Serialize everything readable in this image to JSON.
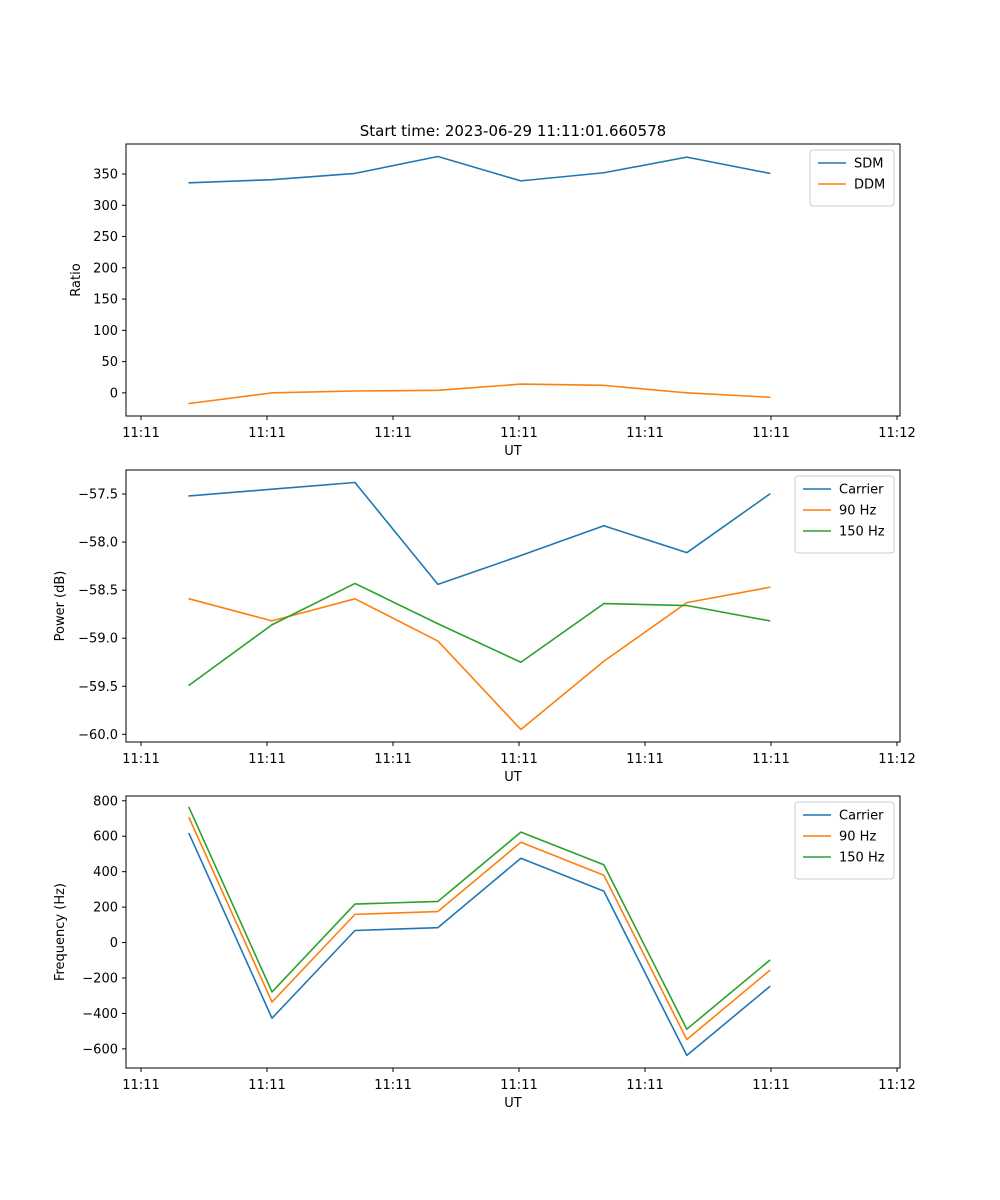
{
  "chart_data": [
    {
      "type": "line",
      "title": "Start time: 2023-06-29 11:11:01.660578",
      "xlabel": "UT",
      "ylabel": "Ratio",
      "x_tick_labels": [
        "11:11",
        "11:11",
        "11:11",
        "11:11",
        "11:11",
        "11:11",
        "11:12"
      ],
      "x_range_index": [
        -0.76,
        8.57
      ],
      "ylim": [
        -37,
        398
      ],
      "y_ticks": [
        0,
        50,
        100,
        150,
        200,
        250,
        300,
        350
      ],
      "legend_position": "upper right",
      "series": [
        {
          "name": "SDM",
          "color": "#1f77b4",
          "values": [
            336,
            341,
            351,
            378,
            339,
            352,
            377,
            351
          ]
        },
        {
          "name": "DDM",
          "color": "#ff7f0e",
          "values": [
            -17,
            0,
            3,
            4,
            14,
            12,
            0,
            -7
          ]
        }
      ]
    },
    {
      "type": "line",
      "title": "",
      "xlabel": "UT",
      "ylabel": "Power (dB)",
      "x_tick_labels": [
        "11:11",
        "11:11",
        "11:11",
        "11:11",
        "11:11",
        "11:11",
        "11:12"
      ],
      "x_range_index": [
        -0.76,
        8.57
      ],
      "ylim": [
        -60.08,
        -57.25
      ],
      "y_ticks": [
        -60.0,
        -59.5,
        -59.0,
        -58.5,
        -58.0,
        -57.5
      ],
      "legend_position": "upper right",
      "series": [
        {
          "name": "Carrier",
          "color": "#1f77b4",
          "values": [
            -57.52,
            -57.45,
            -57.38,
            -58.44,
            -58.14,
            -57.83,
            -58.11,
            -57.5
          ]
        },
        {
          "name": "90 Hz",
          "color": "#ff7f0e",
          "values": [
            -58.59,
            -58.82,
            -58.59,
            -59.03,
            -59.95,
            -59.24,
            -58.63,
            -58.47
          ]
        },
        {
          "name": "150 Hz",
          "color": "#2ca02c",
          "values": [
            -59.49,
            -58.86,
            -58.43,
            -58.85,
            -59.25,
            -58.64,
            -58.66,
            -58.82
          ]
        }
      ]
    },
    {
      "type": "line",
      "title": "",
      "xlabel": "UT",
      "ylabel": "Frequency (Hz)",
      "x_tick_labels": [
        "11:11",
        "11:11",
        "11:11",
        "11:11",
        "11:11",
        "11:11",
        "11:12"
      ],
      "x_range_index": [
        -0.76,
        8.57
      ],
      "ylim": [
        -708,
        827
      ],
      "y_ticks": [
        -600,
        -400,
        -200,
        0,
        200,
        400,
        600,
        800
      ],
      "legend_position": "upper right",
      "series": [
        {
          "name": "Carrier",
          "color": "#1f77b4",
          "values": [
            615,
            -427,
            68,
            84,
            476,
            290,
            -637,
            -248
          ]
        },
        {
          "name": "90 Hz",
          "color": "#ff7f0e",
          "values": [
            705,
            -336,
            159,
            175,
            566,
            380,
            -547,
            -157
          ]
        },
        {
          "name": "150 Hz",
          "color": "#2ca02c",
          "values": [
            762,
            -279,
            217,
            232,
            623,
            439,
            -489,
            -100
          ]
        }
      ]
    }
  ]
}
